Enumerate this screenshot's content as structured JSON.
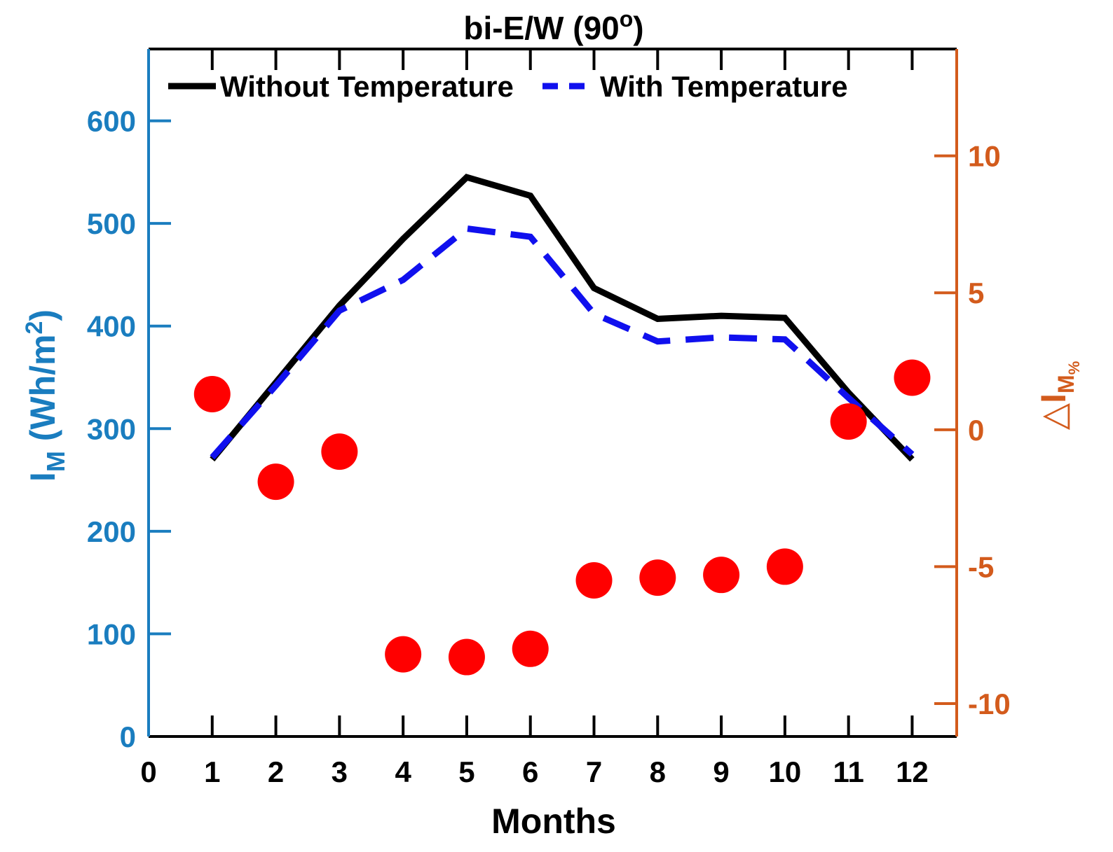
{
  "chart_data": {
    "type": "line",
    "title": "bi-E/W (90",
    "title_superscript": "o",
    "title_close": ")",
    "xlabel": "Months",
    "ylabel_left": {
      "base": "I",
      "subscript": "M",
      "unit": " (Wh/m",
      "unit_superscript": "2",
      "unit_close": ")"
    },
    "ylabel_right": {
      "delta": "△",
      "base": "I",
      "subscript": "M",
      "subsubscript": "%"
    },
    "x": [
      1,
      2,
      3,
      4,
      5,
      6,
      7,
      8,
      9,
      10,
      11,
      12
    ],
    "xlim": [
      0,
      12.7
    ],
    "xticks": [
      0,
      1,
      2,
      3,
      4,
      5,
      6,
      7,
      8,
      9,
      10,
      11,
      12
    ],
    "ylim_left": [
      0,
      670
    ],
    "yticks_left": [
      0,
      100,
      200,
      300,
      400,
      500,
      600
    ],
    "ylim_right": [
      -11.2,
      13.9
    ],
    "yticks_right": [
      -10,
      -5,
      0,
      5,
      10
    ],
    "left_axis_color": "#1a7dbf",
    "right_axis_color": "#d35b1c",
    "series": [
      {
        "name": "Without Temperature",
        "axis": "left",
        "style": "solid",
        "color": "#000000",
        "values": [
          270,
          345,
          420,
          485,
          545,
          527,
          437,
          407,
          410,
          408,
          335,
          270
        ]
      },
      {
        "name": "With Temperature",
        "axis": "left",
        "style": "dashed",
        "color": "#1010ee",
        "values": [
          272,
          342,
          415,
          445,
          495,
          487,
          412,
          385,
          389,
          387,
          330,
          275
        ]
      },
      {
        "name": "ΔI_M%",
        "axis": "right",
        "style": "markers",
        "color": "#ff0000",
        "values": [
          1.3,
          -1.9,
          -0.8,
          -8.2,
          -8.3,
          -8.0,
          -5.5,
          -5.4,
          -5.3,
          -5.0,
          0.3,
          1.9
        ]
      }
    ],
    "legend": [
      "Without Temperature",
      "With Temperature"
    ],
    "legend_position": "top"
  }
}
